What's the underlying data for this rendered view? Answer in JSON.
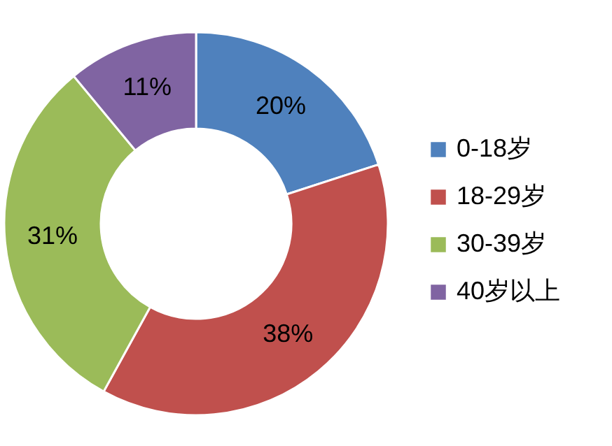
{
  "chart_data": {
    "type": "donut",
    "categories": [
      "0-18岁",
      "18-29岁",
      "30-39岁",
      "40岁以上"
    ],
    "values": [
      20,
      38,
      31,
      11
    ],
    "colors": [
      "#4f81bd",
      "#c0504d",
      "#9bbb59",
      "#8064a2"
    ],
    "value_labels": [
      "20%",
      "38%",
      "31%",
      "11%"
    ],
    "legend": "right"
  }
}
